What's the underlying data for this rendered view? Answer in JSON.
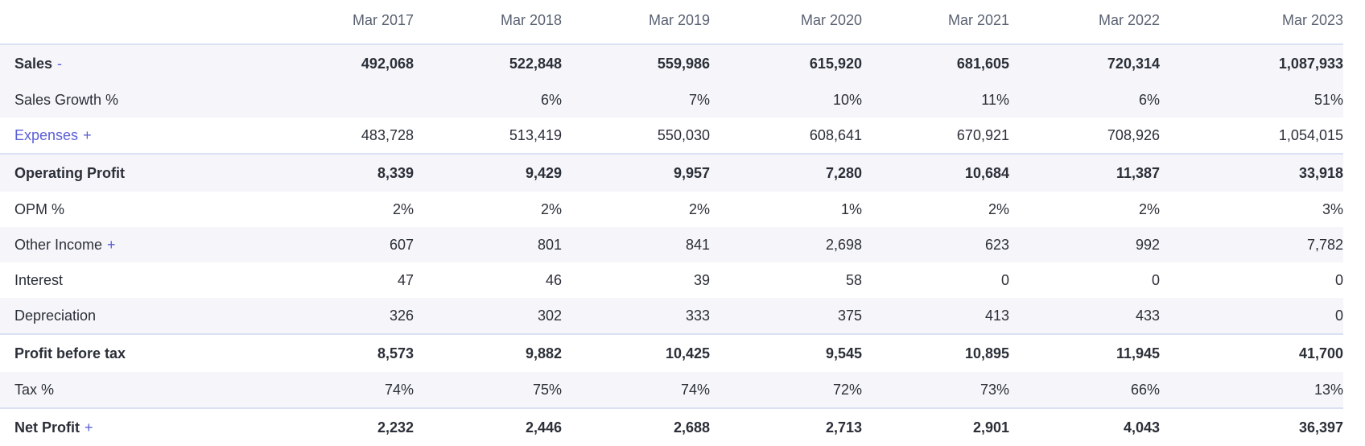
{
  "years": [
    "Mar 2017",
    "Mar 2018",
    "Mar 2019",
    "Mar 2020",
    "Mar 2021",
    "Mar 2022",
    "Mar 2023"
  ],
  "rows": [
    {
      "label": "Sales",
      "toggle": "-",
      "values": [
        "492,068",
        "522,848",
        "559,986",
        "615,920",
        "681,605",
        "720,314",
        "1,087,933"
      ]
    },
    {
      "label": "Sales Growth %",
      "toggle": "",
      "values": [
        "",
        "6%",
        "7%",
        "10%",
        "11%",
        "6%",
        "51%"
      ]
    },
    {
      "label": "Expenses",
      "toggle": "+",
      "values": [
        "483,728",
        "513,419",
        "550,030",
        "608,641",
        "670,921",
        "708,926",
        "1,054,015"
      ]
    },
    {
      "label": "Operating Profit",
      "toggle": "",
      "values": [
        "8,339",
        "9,429",
        "9,957",
        "7,280",
        "10,684",
        "11,387",
        "33,918"
      ]
    },
    {
      "label": "OPM %",
      "toggle": "",
      "values": [
        "2%",
        "2%",
        "2%",
        "1%",
        "2%",
        "2%",
        "3%"
      ]
    },
    {
      "label": "Other Income",
      "toggle": "+",
      "values": [
        "607",
        "801",
        "841",
        "2,698",
        "623",
        "992",
        "7,782"
      ]
    },
    {
      "label": "Interest",
      "toggle": "",
      "values": [
        "47",
        "46",
        "39",
        "58",
        "0",
        "0",
        "0"
      ]
    },
    {
      "label": "Depreciation",
      "toggle": "",
      "values": [
        "326",
        "302",
        "333",
        "375",
        "413",
        "433",
        "0"
      ]
    },
    {
      "label": "Profit before tax",
      "toggle": "",
      "values": [
        "8,573",
        "9,882",
        "10,425",
        "9,545",
        "10,895",
        "11,945",
        "41,700"
      ]
    },
    {
      "label": "Tax %",
      "toggle": "",
      "values": [
        "74%",
        "75%",
        "74%",
        "72%",
        "73%",
        "66%",
        "13%"
      ]
    },
    {
      "label": "Net Profit",
      "toggle": "+",
      "values": [
        "2,232",
        "2,446",
        "2,688",
        "2,713",
        "2,901",
        "4,043",
        "36,397"
      ]
    }
  ],
  "colors": {
    "accent": "#5b5fd6",
    "row_shade": "#f6f6fa",
    "divider": "#d9e1f2"
  }
}
